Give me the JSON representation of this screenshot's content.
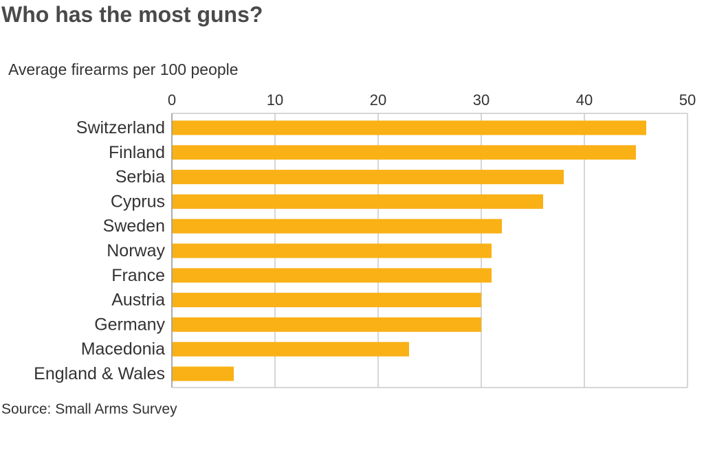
{
  "title": "Who has the most guns?",
  "source": "Source: Small Arms Survey",
  "colors": {
    "bar": "#f9b116",
    "grid": "#c8c8c8",
    "text": "#333333"
  },
  "chart_data": {
    "type": "bar",
    "orientation": "horizontal",
    "title": "Who has the most guns?",
    "subtitle": "Average firearms per 100 people",
    "categories": [
      "Switzerland",
      "Finland",
      "Serbia",
      "Cyprus",
      "Sweden",
      "Norway",
      "France",
      "Austria",
      "Germany",
      "Macedonia",
      "England & Wales"
    ],
    "values": [
      46,
      45,
      38,
      36,
      32,
      31,
      31,
      30,
      30,
      23,
      6
    ],
    "xlim": [
      0,
      50
    ],
    "xticks": [
      0,
      10,
      20,
      30,
      40,
      50
    ],
    "xlabel": "",
    "ylabel": "",
    "grid": true,
    "legend": false
  }
}
